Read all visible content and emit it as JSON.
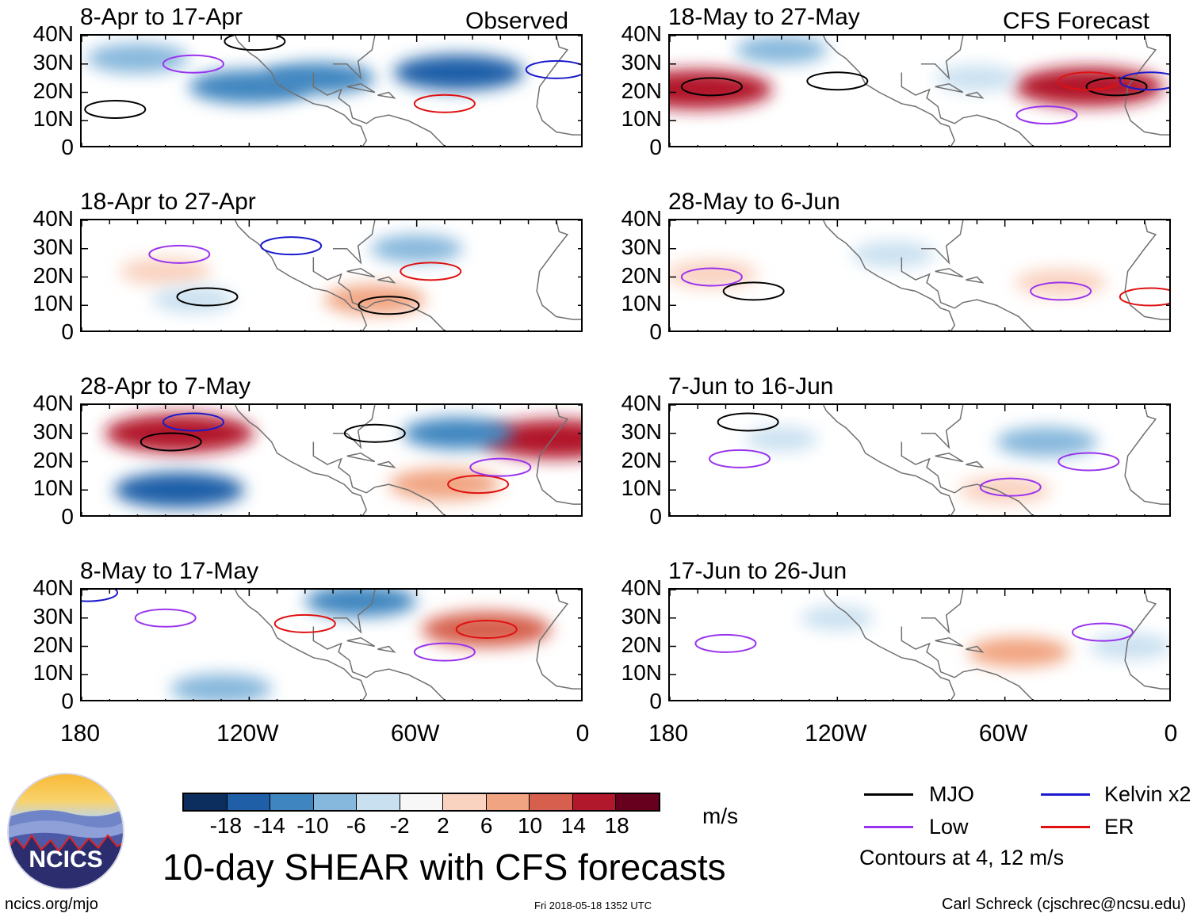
{
  "chart_data": {
    "type": "heatmap",
    "title": "10-day SHEAR with CFS forecasts",
    "variable": "SHEAR",
    "units": "m/s",
    "section_labels": {
      "observed": "Observed",
      "forecast": "CFS Forecast"
    },
    "x_ticks": [
      "180",
      "120W",
      "60W",
      "0"
    ],
    "y_ticks": [
      "40N",
      "30N",
      "20N",
      "10N",
      "0"
    ],
    "lon_range": [
      -180,
      0
    ],
    "lat_range": [
      0,
      40
    ],
    "panels": [
      {
        "title": "8-Apr to 17-Apr",
        "section": "observed",
        "anomalies": [
          {
            "lon": -120,
            "lat": 22,
            "value": -12
          },
          {
            "lon": -95,
            "lat": 25,
            "value": -10
          },
          {
            "lon": -45,
            "lat": 27,
            "value": -14
          },
          {
            "lon": -160,
            "lat": 32,
            "value": -8
          }
        ],
        "contours": [
          {
            "type": "MJO",
            "lon": -168,
            "lat": 14
          },
          {
            "type": "MJO",
            "lon": -118,
            "lat": 38
          },
          {
            "type": "ER",
            "lon": -50,
            "lat": 16
          },
          {
            "type": "Low",
            "lon": -140,
            "lat": 30
          },
          {
            "type": "Kelvin x2",
            "lon": -10,
            "lat": 28
          }
        ]
      },
      {
        "title": "18-Apr to 27-Apr",
        "section": "observed",
        "anomalies": [
          {
            "lon": -150,
            "lat": 22,
            "value": 6
          },
          {
            "lon": -75,
            "lat": 12,
            "value": 8
          },
          {
            "lon": -60,
            "lat": 30,
            "value": -6
          },
          {
            "lon": -140,
            "lat": 12,
            "value": -4
          }
        ],
        "contours": [
          {
            "type": "MJO",
            "lon": -135,
            "lat": 13
          },
          {
            "type": "MJO",
            "lon": -70,
            "lat": 10
          },
          {
            "type": "ER",
            "lon": -55,
            "lat": 22
          },
          {
            "type": "Low",
            "lon": -145,
            "lat": 28
          },
          {
            "type": "Kelvin x2",
            "lon": -105,
            "lat": 31
          }
        ]
      },
      {
        "title": "28-Apr to 7-May",
        "section": "observed",
        "anomalies": [
          {
            "lon": -145,
            "lat": 30,
            "value": 18
          },
          {
            "lon": -10,
            "lat": 28,
            "value": 18
          },
          {
            "lon": -50,
            "lat": 12,
            "value": 10
          },
          {
            "lon": -145,
            "lat": 10,
            "value": -14
          },
          {
            "lon": -45,
            "lat": 30,
            "value": -10
          }
        ],
        "contours": [
          {
            "type": "MJO",
            "lon": -148,
            "lat": 27
          },
          {
            "type": "MJO",
            "lon": -75,
            "lat": 30
          },
          {
            "type": "ER",
            "lon": -38,
            "lat": 12
          },
          {
            "type": "Low",
            "lon": -30,
            "lat": 18
          },
          {
            "type": "Kelvin x2",
            "lon": -140,
            "lat": 34
          }
        ]
      },
      {
        "title": "8-May to 17-May",
        "section": "observed",
        "anomalies": [
          {
            "lon": -35,
            "lat": 26,
            "value": 14
          },
          {
            "lon": -80,
            "lat": 36,
            "value": -10
          },
          {
            "lon": -130,
            "lat": 5,
            "value": -8
          }
        ],
        "contours": [
          {
            "type": "ER",
            "lon": -35,
            "lat": 26
          },
          {
            "type": "Low",
            "lon": -50,
            "lat": 18
          },
          {
            "type": "Low",
            "lon": -150,
            "lat": 30
          },
          {
            "type": "ER",
            "lon": -100,
            "lat": 28
          },
          {
            "type": "Kelvin x2",
            "lon": -178,
            "lat": 39
          }
        ]
      },
      {
        "title": "18-May to 27-May",
        "section": "forecast",
        "anomalies": [
          {
            "lon": -170,
            "lat": 21,
            "value": 18
          },
          {
            "lon": -30,
            "lat": 22,
            "value": 18
          },
          {
            "lon": -140,
            "lat": 35,
            "value": -6
          },
          {
            "lon": -70,
            "lat": 25,
            "value": -4
          }
        ],
        "contours": [
          {
            "type": "MJO",
            "lon": -165,
            "lat": 22
          },
          {
            "type": "MJO",
            "lon": -120,
            "lat": 24
          },
          {
            "type": "MJO",
            "lon": -20,
            "lat": 22
          },
          {
            "type": "ER",
            "lon": -30,
            "lat": 24
          },
          {
            "type": "Low",
            "lon": -45,
            "lat": 12
          },
          {
            "type": "Kelvin x2",
            "lon": -8,
            "lat": 24
          }
        ]
      },
      {
        "title": "28-May to 6-Jun",
        "section": "forecast",
        "anomalies": [
          {
            "lon": -165,
            "lat": 21,
            "value": 6
          },
          {
            "lon": -40,
            "lat": 18,
            "value": 6
          },
          {
            "lon": -100,
            "lat": 28,
            "value": -4
          }
        ],
        "contours": [
          {
            "type": "MJO",
            "lon": -150,
            "lat": 15
          },
          {
            "type": "Low",
            "lon": -165,
            "lat": 20
          },
          {
            "type": "Low",
            "lon": -40,
            "lat": 15
          },
          {
            "type": "ER",
            "lon": -8,
            "lat": 13
          }
        ]
      },
      {
        "title": "7-Jun to 16-Jun",
        "section": "forecast",
        "anomalies": [
          {
            "lon": -45,
            "lat": 27,
            "value": -8
          },
          {
            "lon": -60,
            "lat": 10,
            "value": 6
          },
          {
            "lon": -140,
            "lat": 28,
            "value": -2
          }
        ],
        "contours": [
          {
            "type": "MJO",
            "lon": -152,
            "lat": 34
          },
          {
            "type": "Low",
            "lon": -155,
            "lat": 21
          },
          {
            "type": "Low",
            "lon": -30,
            "lat": 20
          },
          {
            "type": "Low",
            "lon": -58,
            "lat": 11
          }
        ]
      },
      {
        "title": "17-Jun to 26-Jun",
        "section": "forecast",
        "anomalies": [
          {
            "lon": -55,
            "lat": 18,
            "value": 8
          },
          {
            "lon": -120,
            "lat": 30,
            "value": -2
          },
          {
            "lon": -15,
            "lat": 20,
            "value": -4
          }
        ],
        "contours": [
          {
            "type": "Low",
            "lon": -160,
            "lat": 21
          },
          {
            "type": "Low",
            "lon": -25,
            "lat": 25
          }
        ]
      }
    ],
    "colorbar": {
      "levels": [
        "-18",
        "-14",
        "-10",
        "-6",
        "-2",
        "2",
        "6",
        "10",
        "14",
        "18"
      ],
      "colors": [
        "#0b2e5e",
        "#1f5fa8",
        "#3f86c0",
        "#86b7dc",
        "#c9e0f0",
        "#f7f7f7",
        "#f9d2c0",
        "#f1a481",
        "#d6604d",
        "#b2182b",
        "#67001f"
      ],
      "units_label": "m/s"
    },
    "legend": [
      {
        "label": "MJO",
        "color": "#000000"
      },
      {
        "label": "Kelvin x2",
        "color": "#1a1acc"
      },
      {
        "label": "Low",
        "color": "#9933ee"
      },
      {
        "label": "ER",
        "color": "#e01010"
      }
    ],
    "contour_note": "Contours at 4, 12 m/s"
  },
  "footer": {
    "logo_text": "NCICS",
    "url": "ncics.org/mjo",
    "timestamp": "Fri 2018-05-18 1352 UTC",
    "author": "Carl Schreck (cjschrec@ncsu.edu)"
  },
  "colors": {
    "land_outline": "#707070",
    "logo_bg": "#2b2d6e",
    "logo_sky": "#f5c23a"
  }
}
